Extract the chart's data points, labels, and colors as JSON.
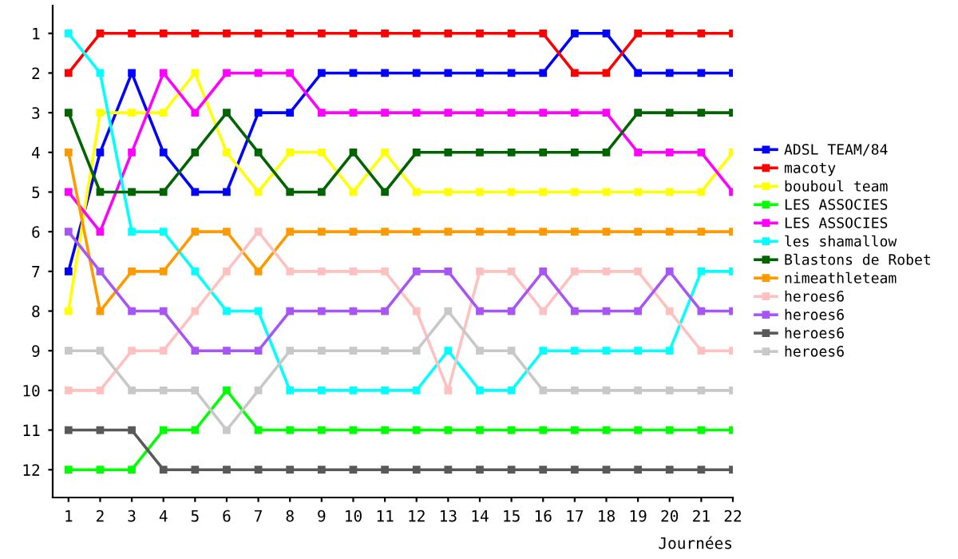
{
  "chart_data": {
    "type": "line",
    "xlabel": "Journées",
    "x": [
      1,
      2,
      3,
      4,
      5,
      6,
      7,
      8,
      9,
      10,
      11,
      12,
      13,
      14,
      15,
      16,
      17,
      18,
      19,
      20,
      21,
      22
    ],
    "xlim": [
      0.5,
      22
    ],
    "xticks": [
      1,
      2,
      3,
      4,
      5,
      6,
      7,
      8,
      9,
      10,
      11,
      12,
      13,
      14,
      15,
      16,
      17,
      18,
      19,
      20,
      21,
      22
    ],
    "ylim": [
      12.7,
      0.3
    ],
    "yticks": [
      1,
      2,
      3,
      4,
      5,
      6,
      7,
      8,
      9,
      10,
      11,
      12
    ],
    "grid": false,
    "legend": "right",
    "marker": "square",
    "line_style": "solid",
    "series": [
      {
        "name": "ADSL TEAM/84",
        "color": "#0000ff",
        "values": [
          7,
          4,
          2,
          4,
          5,
          5,
          3,
          3,
          2,
          2,
          2,
          2,
          2,
          2,
          2,
          2,
          1,
          1,
          2,
          2,
          2,
          2
        ]
      },
      {
        "name": "macoty",
        "color": "#ff0000",
        "values": [
          2,
          1,
          1,
          1,
          1,
          1,
          1,
          1,
          1,
          1,
          1,
          1,
          1,
          1,
          1,
          1,
          2,
          2,
          1,
          1,
          1,
          1
        ]
      },
      {
        "name": "bouboul team",
        "color": "#ffff00",
        "values": [
          8,
          3,
          3,
          3,
          2,
          4,
          5,
          4,
          4,
          5,
          4,
          5,
          5,
          5,
          5,
          5,
          5,
          5,
          5,
          5,
          5,
          4
        ]
      },
      {
        "name": "LES ASSOCIES",
        "color": "#00ff00",
        "values": [
          12,
          12,
          12,
          11,
          11,
          10,
          11,
          11,
          11,
          11,
          11,
          11,
          11,
          11,
          11,
          11,
          11,
          11,
          11,
          11,
          11,
          11
        ]
      },
      {
        "name": "LES ASSOCIES",
        "color": "#ff00ff",
        "values": [
          5,
          6,
          4,
          2,
          3,
          2,
          2,
          2,
          3,
          3,
          3,
          3,
          3,
          3,
          3,
          3,
          3,
          3,
          4,
          4,
          4,
          5
        ]
      },
      {
        "name": "les shamallow",
        "color": "#00ffff",
        "values": [
          1,
          2,
          6,
          6,
          7,
          8,
          8,
          10,
          10,
          10,
          10,
          10,
          9,
          10,
          10,
          9,
          9,
          9,
          9,
          9,
          7,
          7
        ]
      },
      {
        "name": "Blastons de Robet",
        "color": "#006400",
        "values": [
          3,
          5,
          5,
          5,
          4,
          3,
          4,
          5,
          5,
          4,
          5,
          4,
          4,
          4,
          4,
          4,
          4,
          4,
          3,
          3,
          3,
          3
        ]
      },
      {
        "name": "nimeathleteam",
        "color": "#ff9900",
        "values": [
          4,
          8,
          7,
          7,
          6,
          6,
          7,
          6,
          6,
          6,
          6,
          6,
          6,
          6,
          6,
          6,
          6,
          6,
          6,
          6,
          6,
          6
        ]
      },
      {
        "name": "heroes6",
        "color": "#ffc0c0",
        "values": [
          10,
          10,
          9,
          9,
          8,
          7,
          6,
          7,
          7,
          7,
          7,
          8,
          10,
          7,
          7,
          8,
          7,
          7,
          7,
          8,
          9,
          9
        ]
      },
      {
        "name": "heroes6",
        "color": "#a855f7",
        "values": [
          6,
          7,
          8,
          8,
          9,
          9,
          9,
          8,
          8,
          8,
          8,
          7,
          7,
          8,
          8,
          7,
          8,
          8,
          8,
          7,
          8,
          8
        ]
      },
      {
        "name": "heroes6",
        "color": "#595959",
        "values": [
          11,
          11,
          11,
          12,
          12,
          12,
          12,
          12,
          12,
          12,
          12,
          12,
          12,
          12,
          12,
          12,
          12,
          12,
          12,
          12,
          12,
          12
        ]
      },
      {
        "name": "heroes6",
        "color": "#c8c8c8",
        "values": [
          9,
          9,
          10,
          10,
          10,
          11,
          10,
          9,
          9,
          9,
          9,
          9,
          8,
          9,
          9,
          10,
          10,
          10,
          10,
          10,
          10,
          10
        ]
      }
    ]
  }
}
